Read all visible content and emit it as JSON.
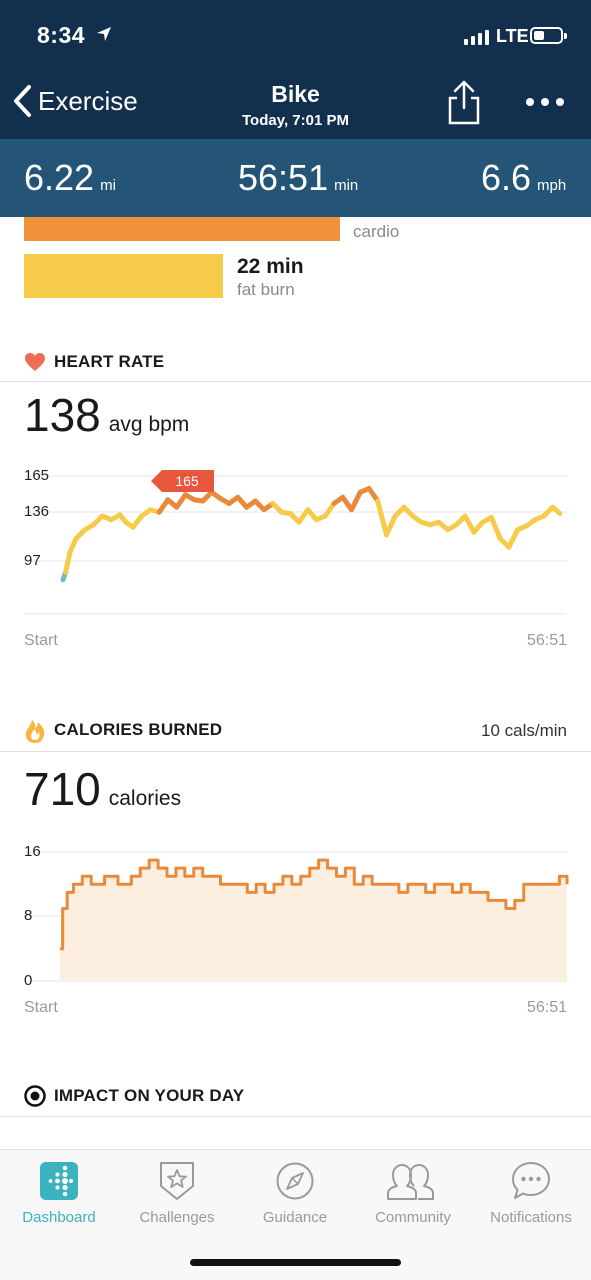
{
  "status_bar": {
    "time": "8:34",
    "network": "LTE"
  },
  "nav": {
    "back_label": "Exercise",
    "title": "Bike",
    "subtitle": "Today, 7:01 PM"
  },
  "stats": [
    {
      "value": "6.22",
      "unit": "mi"
    },
    {
      "value": "56:51",
      "unit": "min"
    },
    {
      "value": "6.6",
      "unit": "mph"
    }
  ],
  "zones": [
    {
      "label": "cardio",
      "color": "#f0923a"
    },
    {
      "value": "22 min",
      "label": "fat burn",
      "color": "#f7cb4a"
    }
  ],
  "heart_rate": {
    "title": "HEART RATE",
    "value": "138",
    "unit": "avg bpm",
    "peak_label": "165",
    "start_label": "Start",
    "end_label": "56:51"
  },
  "calories": {
    "title": "CALORIES BURNED",
    "rate": "10 cals/min",
    "value": "710",
    "unit": "calories",
    "start_label": "Start",
    "end_label": "56:51"
  },
  "impact": {
    "title": "IMPACT ON YOUR DAY"
  },
  "chart_data": [
    {
      "type": "line",
      "yticks": [
        "165",
        "136",
        "97"
      ],
      "ylim": [
        70,
        175
      ],
      "x_minutes": [
        0,
        0.3,
        0.8,
        1.5,
        2.5,
        3.5,
        4.5,
        5.5,
        6.5,
        7.2,
        8,
        9,
        10,
        11,
        12,
        13,
        14,
        15,
        16,
        17,
        18,
        19,
        20,
        21,
        22,
        23,
        24,
        25,
        26,
        27,
        28,
        29,
        30,
        31,
        32,
        33,
        34,
        35,
        36,
        37,
        38,
        39,
        40,
        41,
        42,
        43,
        44,
        45,
        46,
        47,
        48,
        49,
        50,
        51,
        52,
        53,
        54,
        55,
        56,
        56.85
      ],
      "y": [
        82,
        88,
        104,
        115,
        122,
        126,
        133,
        130,
        134,
        128,
        124,
        133,
        138,
        136,
        146,
        140,
        150,
        146,
        145,
        152,
        147,
        143,
        148,
        140,
        145,
        138,
        143,
        136,
        135,
        128,
        138,
        130,
        133,
        143,
        148,
        138,
        152,
        155,
        145,
        118,
        133,
        140,
        133,
        128,
        126,
        128,
        122,
        126,
        133,
        120,
        128,
        132,
        115,
        108,
        122,
        125,
        130,
        133,
        140,
        135
      ],
      "colors": {
        "low": "#6bbdc4",
        "mid": "#f7cb4a",
        "high": "#e9893a"
      }
    },
    {
      "type": "area",
      "yticks": [
        "16",
        "8",
        "0"
      ],
      "ylim": [
        0,
        16
      ],
      "x_minutes": [
        0,
        0.3,
        0.8,
        1.5,
        2.5,
        3.5,
        5,
        6.5,
        8,
        9,
        10,
        11,
        12,
        13,
        14,
        15,
        16,
        17,
        18,
        19,
        20,
        21,
        22,
        23,
        24,
        25,
        26,
        27,
        28,
        29,
        30,
        31,
        32,
        33,
        34,
        35,
        36,
        37,
        38,
        39,
        40,
        41,
        42,
        43,
        44,
        45,
        46,
        47,
        48,
        49,
        50,
        51,
        52,
        53,
        54,
        55,
        56,
        56.85
      ],
      "values": [
        4,
        9,
        11,
        12,
        13,
        12,
        13,
        12,
        13,
        14,
        15,
        14,
        13,
        14,
        13,
        14,
        13,
        13,
        12,
        12,
        12,
        11,
        12,
        11,
        12,
        13,
        12,
        13,
        14,
        15,
        14,
        13,
        14,
        12,
        13,
        12,
        12,
        12,
        11,
        12,
        12,
        11,
        12,
        12,
        11,
        12,
        11,
        11,
        10,
        10,
        9,
        10,
        12,
        12,
        12,
        12,
        13,
        12
      ],
      "line_color": "#e9893a",
      "fill_color": "#fcefdf"
    }
  ],
  "tabs": [
    {
      "label": "Dashboard",
      "icon": "dashboard-icon",
      "active": true
    },
    {
      "label": "Challenges",
      "icon": "challenges-star-icon",
      "active": false
    },
    {
      "label": "Guidance",
      "icon": "compass-icon",
      "active": false
    },
    {
      "label": "Community",
      "icon": "community-people-icon",
      "active": false
    },
    {
      "label": "Notifications",
      "icon": "speech-bubble-icon",
      "active": false
    }
  ]
}
